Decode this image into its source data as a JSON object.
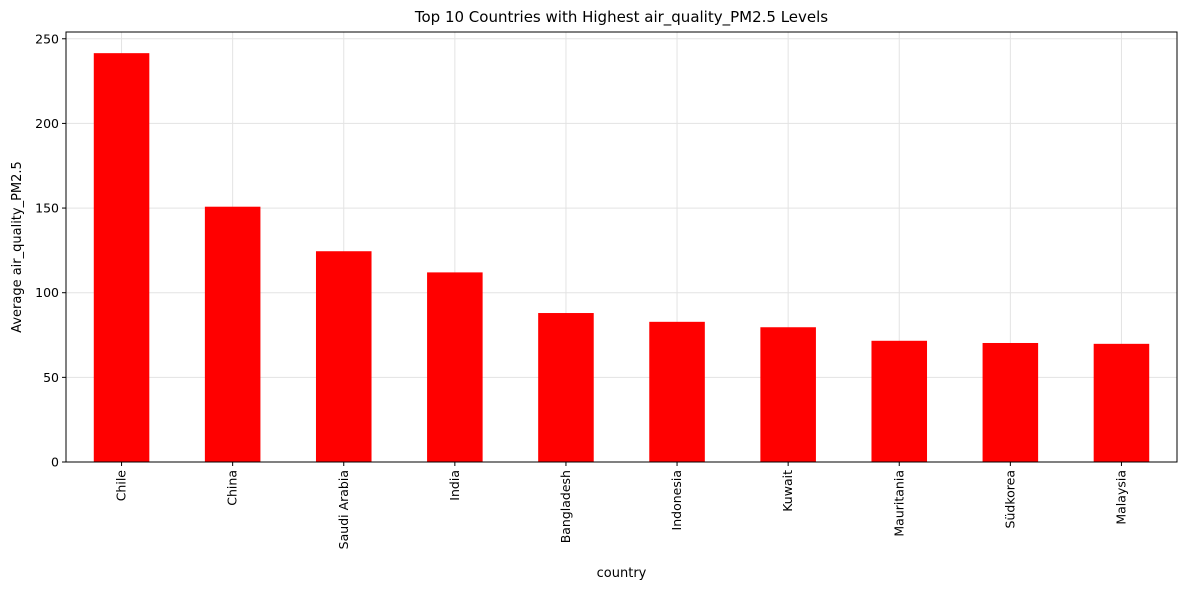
{
  "chart_data": {
    "type": "bar",
    "title": "Top 10 Countries with Highest air_quality_PM2.5 Levels",
    "xlabel": "country",
    "ylabel": "Average air_quality_PM2.5",
    "categories": [
      "Chile",
      "China",
      "Saudi Arabia",
      "India",
      "Bangladesh",
      "Indonesia",
      "Kuwait",
      "Mauritania",
      "Südkorea",
      "Malaysia"
    ],
    "values": [
      241.5,
      150.8,
      124.5,
      112.0,
      88.0,
      82.8,
      79.6,
      71.6,
      70.3,
      69.8
    ],
    "ylim": [
      0,
      254
    ],
    "yticks": [
      0,
      50,
      100,
      150,
      200,
      250
    ],
    "grid": true,
    "bar_color": "#ff0000"
  }
}
